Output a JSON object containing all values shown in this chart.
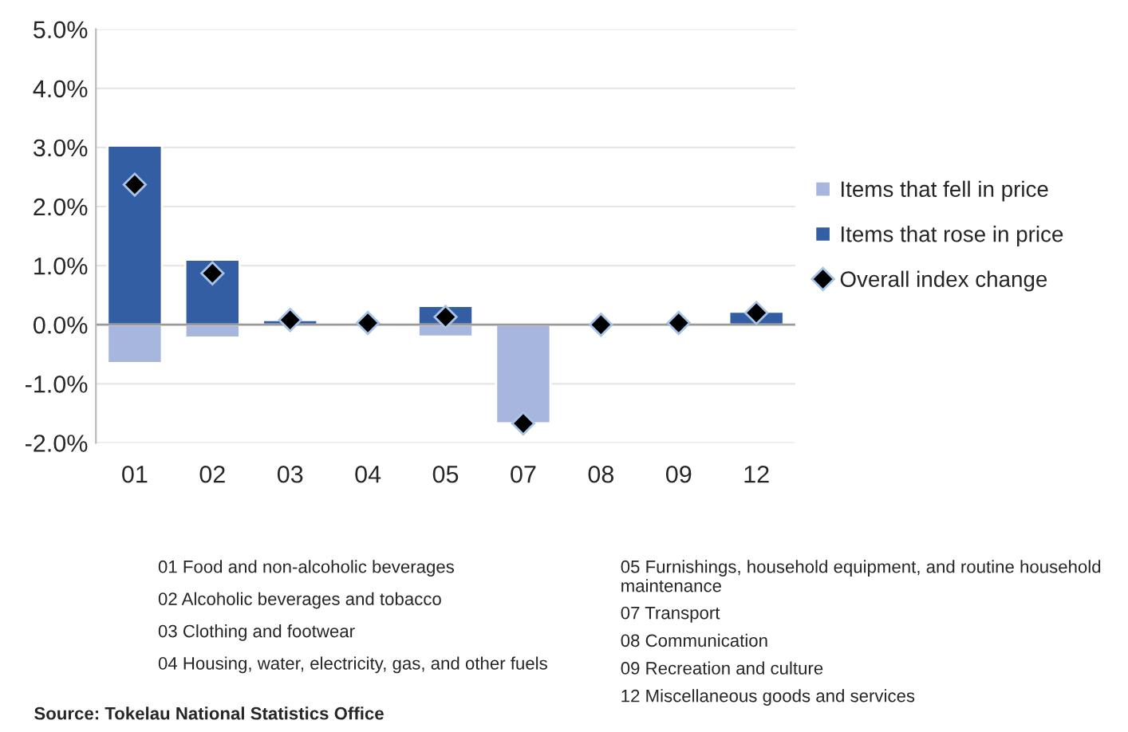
{
  "chart_data": {
    "type": "bar",
    "stacked": true,
    "categories": [
      "01",
      "02",
      "03",
      "04",
      "05",
      "07",
      "08",
      "09",
      "12"
    ],
    "series": [
      {
        "name": "Items that fell in price",
        "color": "#a7b6dc",
        "values": [
          -0.65,
          -0.22,
          null,
          null,
          -0.2,
          -1.67,
          null,
          null,
          -0.02
        ]
      },
      {
        "name": "Items that rose in price",
        "color": "#345ea3",
        "values": [
          3.03,
          1.1,
          0.08,
          0.03,
          0.32,
          null,
          null,
          0.03,
          0.22
        ]
      },
      {
        "name": "Overall index change",
        "type": "scatter",
        "color": "#000000",
        "marker": "diamond",
        "values": [
          2.37,
          0.87,
          0.08,
          0.03,
          0.13,
          -1.67,
          0.0,
          0.03,
          0.2
        ]
      }
    ],
    "ylim": [
      -2,
      5
    ],
    "yticks": [
      {
        "value": -2,
        "label": "-2.0%"
      },
      {
        "value": -1,
        "label": "-1.0%"
      },
      {
        "value": 0,
        "label": "0.0%"
      },
      {
        "value": 1,
        "label": "1.0%"
      },
      {
        "value": 2,
        "label": "2.0%"
      },
      {
        "value": 3,
        "label": "3.0%"
      },
      {
        "value": 4,
        "label": "4.0%"
      },
      {
        "value": 5,
        "label": "5.0%"
      }
    ],
    "grid": "y",
    "legend": "right",
    "annotations": [
      "01 Food and non-alcoholic beverages",
      "02 Alcoholic beverages and tobacco",
      "03 Clothing and footwear",
      "04 Housing, water, electricity, gas, and other fuels",
      "05 Furnishings, household equipment, and routine household maintenance",
      "07 Transport",
      "08 Communication",
      "09 Recreation and culture",
      "12 Miscellaneous goods and services",
      "Source: Tokelau National Statistics Office"
    ]
  }
}
